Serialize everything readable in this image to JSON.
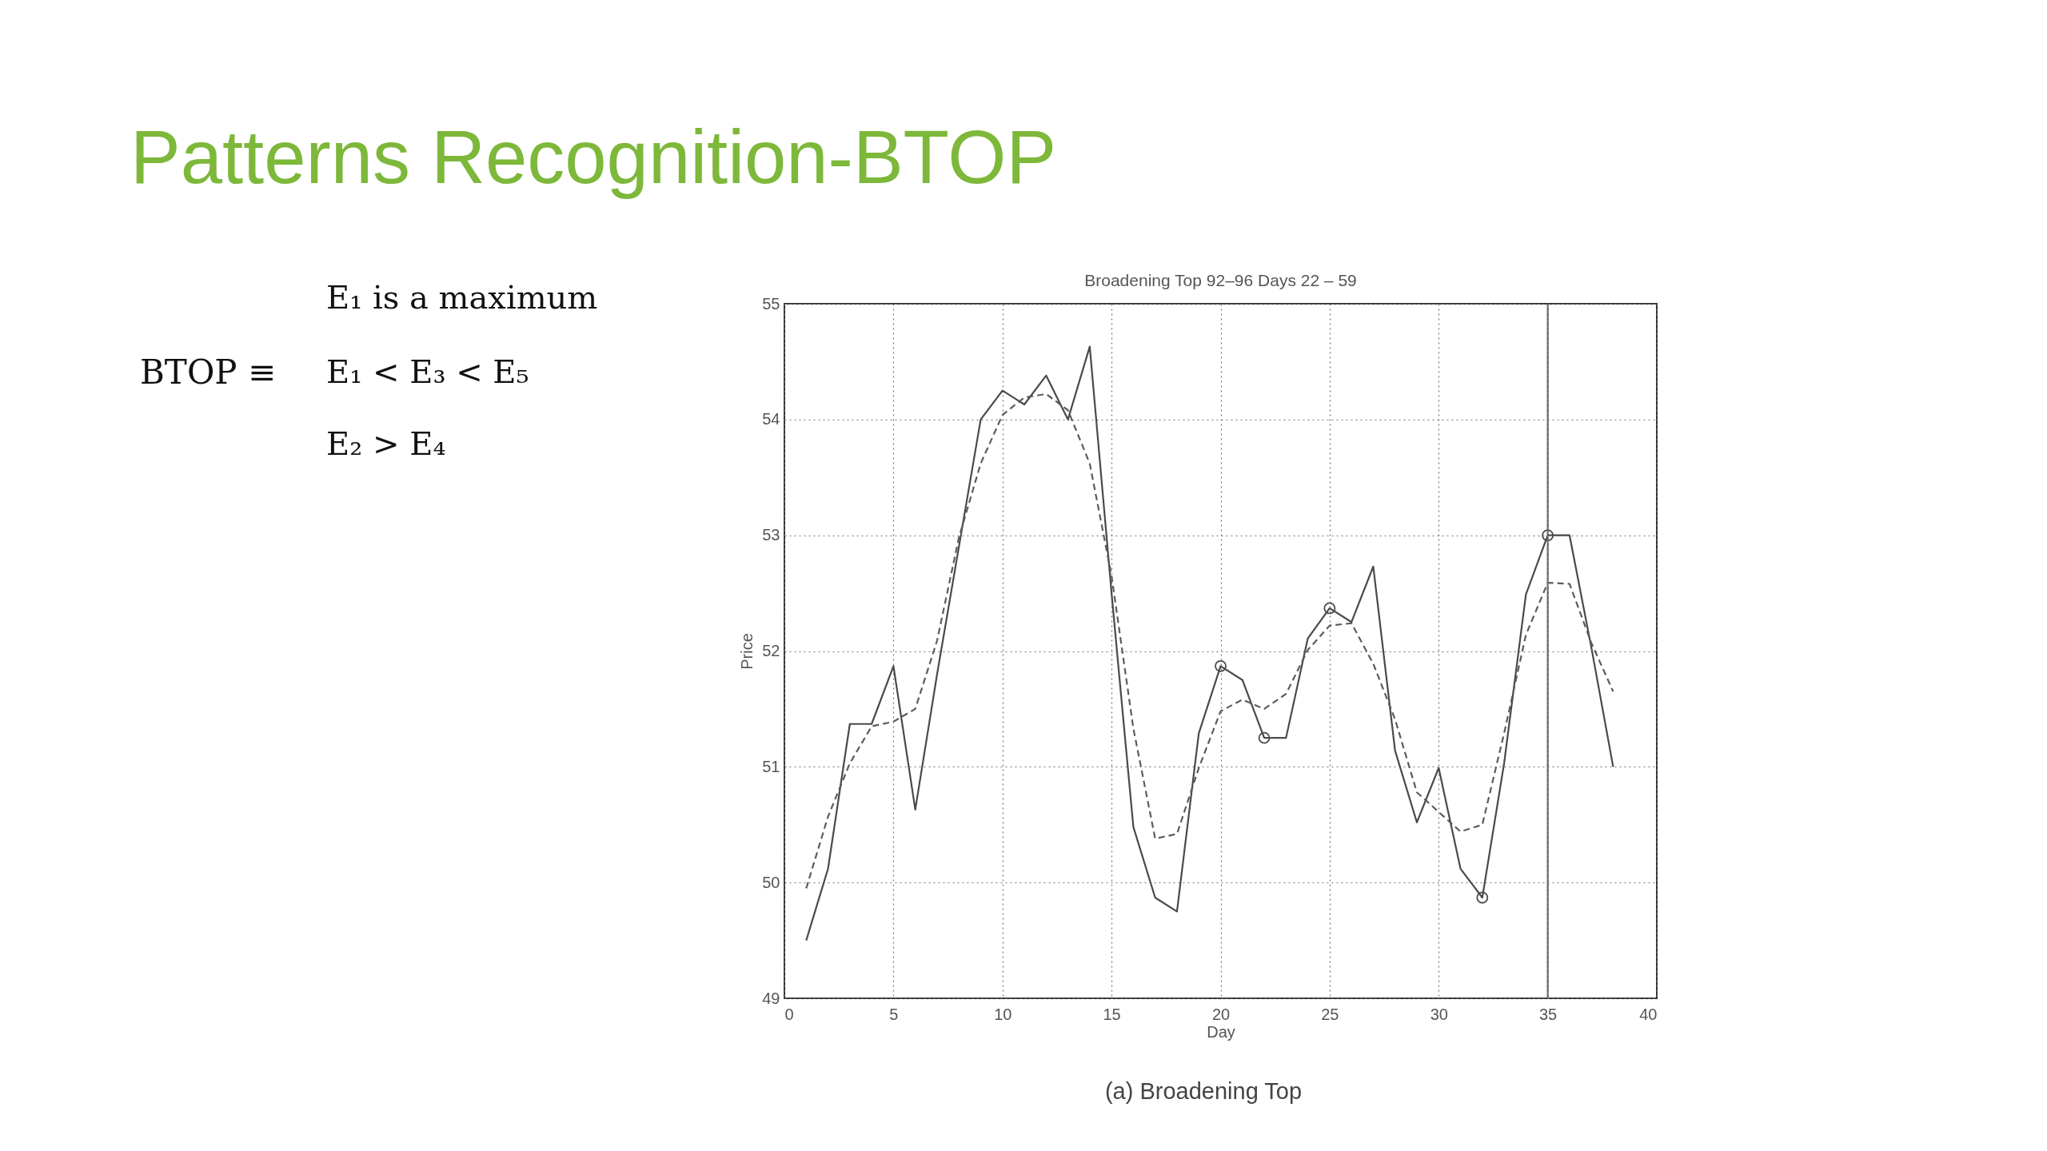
{
  "chart_data": {
    "type": "line",
    "title": "Patterns Recognition-BTOP",
    "subtitle": "Broadening Top 92–96 Days 22 – 59",
    "xlabel": "Day",
    "ylabel": "Price",
    "x": [
      1,
      2,
      3,
      4,
      5,
      6,
      7,
      8,
      9,
      10,
      11,
      12,
      13,
      14,
      15,
      16,
      17,
      18,
      19,
      20,
      21,
      22,
      23,
      24,
      25,
      26,
      27,
      28,
      29,
      30,
      31,
      32,
      33,
      34,
      35,
      36,
      37,
      38
    ],
    "series": [
      {
        "line_style": "solid",
        "color": "#4a4a4a",
        "values": [
          49.5,
          50.12,
          51.37,
          51.37,
          51.87,
          50.63,
          51.8,
          52.9,
          54.0,
          54.25,
          54.13,
          54.38,
          54.0,
          54.63,
          52.5,
          50.48,
          49.87,
          49.75,
          51.29,
          51.87,
          51.75,
          51.25,
          51.25,
          52.11,
          52.37,
          52.25,
          52.73,
          51.14,
          50.52,
          50.99,
          50.12,
          49.87,
          51.03,
          52.49,
          53.0,
          53.0,
          52.03,
          51.0
        ]
      },
      {
        "line_style": "dashed",
        "color": "#5c5c5c",
        "values": [
          49.95,
          50.57,
          51.03,
          51.35,
          51.39,
          51.5,
          52.09,
          52.98,
          53.62,
          54.04,
          54.19,
          54.22,
          54.08,
          53.62,
          52.65,
          51.33,
          50.38,
          50.42,
          50.99,
          51.48,
          51.58,
          51.5,
          51.63,
          52.01,
          52.22,
          52.24,
          51.89,
          51.41,
          50.78,
          50.61,
          50.44,
          50.5,
          51.29,
          52.14,
          52.59,
          52.58,
          52.07,
          51.65
        ]
      },
      {
        "type": "scatter",
        "marker": "circle",
        "color": "#4a4a4a",
        "x": [
          20,
          22,
          25,
          32,
          35
        ],
        "values": [
          51.87,
          51.25,
          52.37,
          49.87,
          53.0
        ]
      }
    ],
    "xlim": [
      0,
      40
    ],
    "ylim": [
      49,
      55
    ],
    "xticks": [
      0,
      5,
      10,
      15,
      20,
      25,
      30,
      35,
      40
    ],
    "yticks": [
      49,
      50,
      51,
      52,
      53,
      54,
      55
    ],
    "grid": true,
    "ref_lines": [
      {
        "axis": "x",
        "value": 35,
        "color": "#6b6b6b",
        "line_style": "solid"
      }
    ],
    "annotations": [
      "BTOP ≡",
      "E₁ is a maximum",
      "E₁ < E₃ < E₅",
      "E₂ > E₄",
      "(a) Broadening Top"
    ]
  }
}
